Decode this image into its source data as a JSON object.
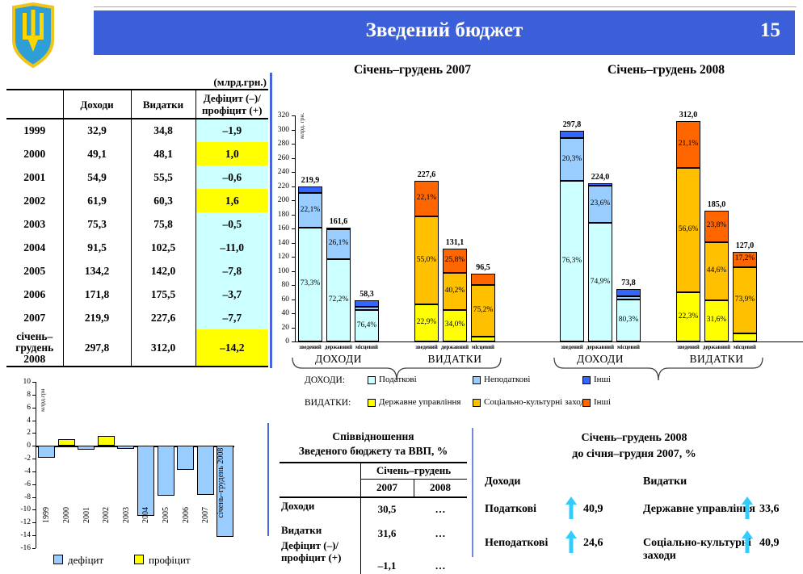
{
  "header": {
    "title": "Зведений бюджет",
    "page_number": "15"
  },
  "colors": {
    "banner_blue": "#3A5FD9",
    "tax_pale_cyan": "#CCFFFF",
    "nontax_light_blue": "#99CCFF",
    "other_revenue_blue": "#3366FF",
    "admin_yellow": "#FFFF00",
    "social_amber": "#FFC000",
    "other_expenditure_orange": "#FF6600",
    "arrow_cyan": "#33CCFF",
    "divider_blue": "#4668DB"
  },
  "budget_table": {
    "unit_note": "(млрд.грн.)",
    "col_revenue": "Доходи",
    "col_expenditure": "Видатки",
    "col_balance": "Дефіцит (–)/\nпрофіцит (+)",
    "rows": [
      {
        "year": "1999",
        "revenue": "32,9",
        "expenditure": "34,8",
        "balance": "–1,9",
        "highlight": "cyan"
      },
      {
        "year": "2000",
        "revenue": "49,1",
        "expenditure": "48,1",
        "balance": "1,0",
        "highlight": "yellow"
      },
      {
        "year": "2001",
        "revenue": "54,9",
        "expenditure": "55,5",
        "balance": "–0,6",
        "highlight": "cyan"
      },
      {
        "year": "2002",
        "revenue": "61,9",
        "expenditure": "60,3",
        "balance": "1,6",
        "highlight": "yellow"
      },
      {
        "year": "2003",
        "revenue": "75,3",
        "expenditure": "75,8",
        "balance": "–0,5",
        "highlight": "cyan"
      },
      {
        "year": "2004",
        "revenue": "91,5",
        "expenditure": "102,5",
        "balance": "–11,0",
        "highlight": "cyan"
      },
      {
        "year": "2005",
        "revenue": "134,2",
        "expenditure": "142,0",
        "balance": "–7,8",
        "highlight": "cyan"
      },
      {
        "year": "2006",
        "revenue": "171,8",
        "expenditure": "175,5",
        "balance": "–3,7",
        "highlight": "cyan"
      },
      {
        "year": "2007",
        "revenue": "219,9",
        "expenditure": "227,6",
        "balance": "–7,7",
        "highlight": "cyan"
      },
      {
        "year": "січень–грудень 2008",
        "revenue": "297,8",
        "expenditure": "312,0",
        "balance": "–14,2",
        "highlight": "yellow"
      }
    ]
  },
  "chart_data": [
    {
      "type": "bar",
      "stacked": true,
      "title": "Січень–грудень 2007",
      "ylabel": "млрд. грн.",
      "ylim": [
        0,
        320
      ],
      "ytick_step": 20,
      "show_axis": true,
      "segment_colors": {
        "revenue": [
          "#CCFFFF",
          "#99CCFF",
          "#3366FF"
        ],
        "expenditure": [
          "#FFFF00",
          "#FFC000",
          "#FF6600"
        ]
      },
      "groups": [
        {
          "label": "ДОХОДИ",
          "palette": "revenue",
          "bars": [
            {
              "category": "зведений",
              "total": 219.9,
              "total_label": "219,9",
              "segments": [
                {
                  "pct": 73.3,
                  "label": "73,3%"
                },
                {
                  "pct": 22.1,
                  "label": "22,1%"
                },
                {
                  "pct": 4.6,
                  "label": ""
                }
              ]
            },
            {
              "category": "державний",
              "total": 161.6,
              "total_label": "161,6",
              "segments": [
                {
                  "pct": 72.2,
                  "label": "72,2%"
                },
                {
                  "pct": 26.1,
                  "label": "26,1%"
                },
                {
                  "pct": 1.7,
                  "label": ""
                }
              ]
            },
            {
              "category": "місцевий",
              "total": 58.3,
              "total_label": "58,3",
              "segments": [
                {
                  "pct": 76.4,
                  "label": "76,4%"
                },
                {
                  "pct": 7.6,
                  "label": ""
                },
                {
                  "pct": 16.0,
                  "label": ""
                }
              ]
            }
          ]
        },
        {
          "label": "ВИДАТКИ",
          "palette": "expenditure",
          "bars": [
            {
              "category": "зведений",
              "total": 227.6,
              "total_label": "227,6",
              "segments": [
                {
                  "pct": 22.9,
                  "label": "22,9%"
                },
                {
                  "pct": 55.0,
                  "label": "55,0%"
                },
                {
                  "pct": 22.1,
                  "label": "22,1%"
                }
              ]
            },
            {
              "category": "державний",
              "total": 131.1,
              "total_label": "131,1",
              "segments": [
                {
                  "pct": 34.0,
                  "label": "34,0%"
                },
                {
                  "pct": 40.2,
                  "label": "40,2%"
                },
                {
                  "pct": 25.8,
                  "label": "25,8%"
                }
              ]
            },
            {
              "category": "місцевий",
              "total": 96.5,
              "total_label": "96,5",
              "segments": [
                {
                  "pct": 7.2,
                  "label": ""
                },
                {
                  "pct": 75.2,
                  "label": "75,2%"
                },
                {
                  "pct": 17.6,
                  "label": ""
                }
              ]
            }
          ]
        }
      ]
    },
    {
      "type": "bar",
      "stacked": true,
      "title": "Січень–грудень 2008",
      "ylabel": "",
      "ylim": [
        0,
        320
      ],
      "ytick_step": 20,
      "show_axis": false,
      "segment_colors": {
        "revenue": [
          "#CCFFFF",
          "#99CCFF",
          "#3366FF"
        ],
        "expenditure": [
          "#FFFF00",
          "#FFC000",
          "#FF6600"
        ]
      },
      "groups": [
        {
          "label": "ДОХОДИ",
          "palette": "revenue",
          "bars": [
            {
              "category": "зведений",
              "total": 297.8,
              "total_label": "297,8",
              "segments": [
                {
                  "pct": 76.3,
                  "label": "76,3%"
                },
                {
                  "pct": 20.3,
                  "label": "20,3%"
                },
                {
                  "pct": 3.4,
                  "label": ""
                }
              ]
            },
            {
              "category": "державний",
              "total": 224.0,
              "total_label": "224,0",
              "segments": [
                {
                  "pct": 74.9,
                  "label": "74,9%"
                },
                {
                  "pct": 23.6,
                  "label": "23,6%"
                },
                {
                  "pct": 1.5,
                  "label": ""
                }
              ]
            },
            {
              "category": "місцевий",
              "total": 73.8,
              "total_label": "73,8",
              "segments": [
                {
                  "pct": 80.3,
                  "label": "80,3%"
                },
                {
                  "pct": 7.0,
                  "label": ""
                },
                {
                  "pct": 12.7,
                  "label": ""
                }
              ]
            }
          ]
        },
        {
          "label": "ВИДАТКИ",
          "palette": "expenditure",
          "bars": [
            {
              "category": "зведений",
              "total": 312.0,
              "total_label": "312,0",
              "segments": [
                {
                  "pct": 22.3,
                  "label": "22,3%"
                },
                {
                  "pct": 56.6,
                  "label": "56,6%"
                },
                {
                  "pct": 21.1,
                  "label": "21,1%"
                }
              ]
            },
            {
              "category": "державний",
              "total": 185.0,
              "total_label": "185,0",
              "segments": [
                {
                  "pct": 31.6,
                  "label": "31,6%"
                },
                {
                  "pct": 44.6,
                  "label": "44,6%"
                },
                {
                  "pct": 23.8,
                  "label": "23,8%"
                }
              ]
            },
            {
              "category": "місцевий",
              "total": 127.0,
              "total_label": "127,0",
              "segments": [
                {
                  "pct": 8.9,
                  "label": ""
                },
                {
                  "pct": 73.9,
                  "label": "73,9%"
                },
                {
                  "pct": 17.2,
                  "label": "17,2%"
                }
              ]
            }
          ]
        }
      ]
    },
    {
      "type": "bar",
      "title": "",
      "ylabel": "млрд.грн",
      "ylim": [
        -16,
        10
      ],
      "ytick_step": 2,
      "categories": [
        "1999",
        "2000",
        "2001",
        "2002",
        "2003",
        "2004",
        "2005",
        "2006",
        "2007",
        "січень–грудень 2008"
      ],
      "values": [
        -1.9,
        1.0,
        -0.6,
        1.6,
        -0.5,
        -11.0,
        -7.8,
        -3.7,
        -7.7,
        -14.2
      ],
      "positive_color": "#FFFF00",
      "negative_color": "#99CCFF",
      "legend": [
        {
          "label": "дефіцит",
          "color": "#99CCFF"
        },
        {
          "label": "профіцит",
          "color": "#FFFF00"
        }
      ]
    }
  ],
  "chart_legend": {
    "revenue_label": "ДОХОДИ:",
    "expenditure_label": "ВИДАТКИ:",
    "revenue_items": [
      {
        "label": "Податкові",
        "color": "#CCFFFF"
      },
      {
        "label": "Неподаткові",
        "color": "#99CCFF"
      },
      {
        "label": "Інші",
        "color": "#3366FF"
      }
    ],
    "expenditure_items": [
      {
        "label": "Державне управління",
        "color": "#FFFF00"
      },
      {
        "label": "Соціально-культурні заходи",
        "color": "#FFC000"
      },
      {
        "label": "Інші",
        "color": "#FF6600"
      }
    ]
  },
  "vvp_table": {
    "title_line1": "Співвідношення",
    "title_line2": "Зведеного бюджету та ВВП, %",
    "period_header": "Січень–грудень",
    "col_2007": "2007",
    "col_2008": "2008",
    "rows": [
      {
        "label": "Доходи",
        "y2007": "30,5",
        "y2008": "…"
      },
      {
        "label": "Видатки",
        "y2007": "31,6",
        "y2008": "…"
      },
      {
        "label": "Дефіцит (–)/ профіцит (+)",
        "y2007": "–1,1",
        "y2008": "…"
      }
    ]
  },
  "growth_panel": {
    "title_line1": "Січень–грудень 2008",
    "title_line2": "до січня–грудня 2007, %",
    "revenue_header": "Доходи",
    "expenditure_header": "Видатки",
    "revenue_items": [
      {
        "label": "Податкові",
        "value": "40,9"
      },
      {
        "label": "Неподаткові",
        "value": "24,6"
      }
    ],
    "expenditure_items": [
      {
        "label": "Державне управління",
        "value": "33,6"
      },
      {
        "label": "Соціально-культурні заходи",
        "value": "40,9"
      }
    ]
  }
}
